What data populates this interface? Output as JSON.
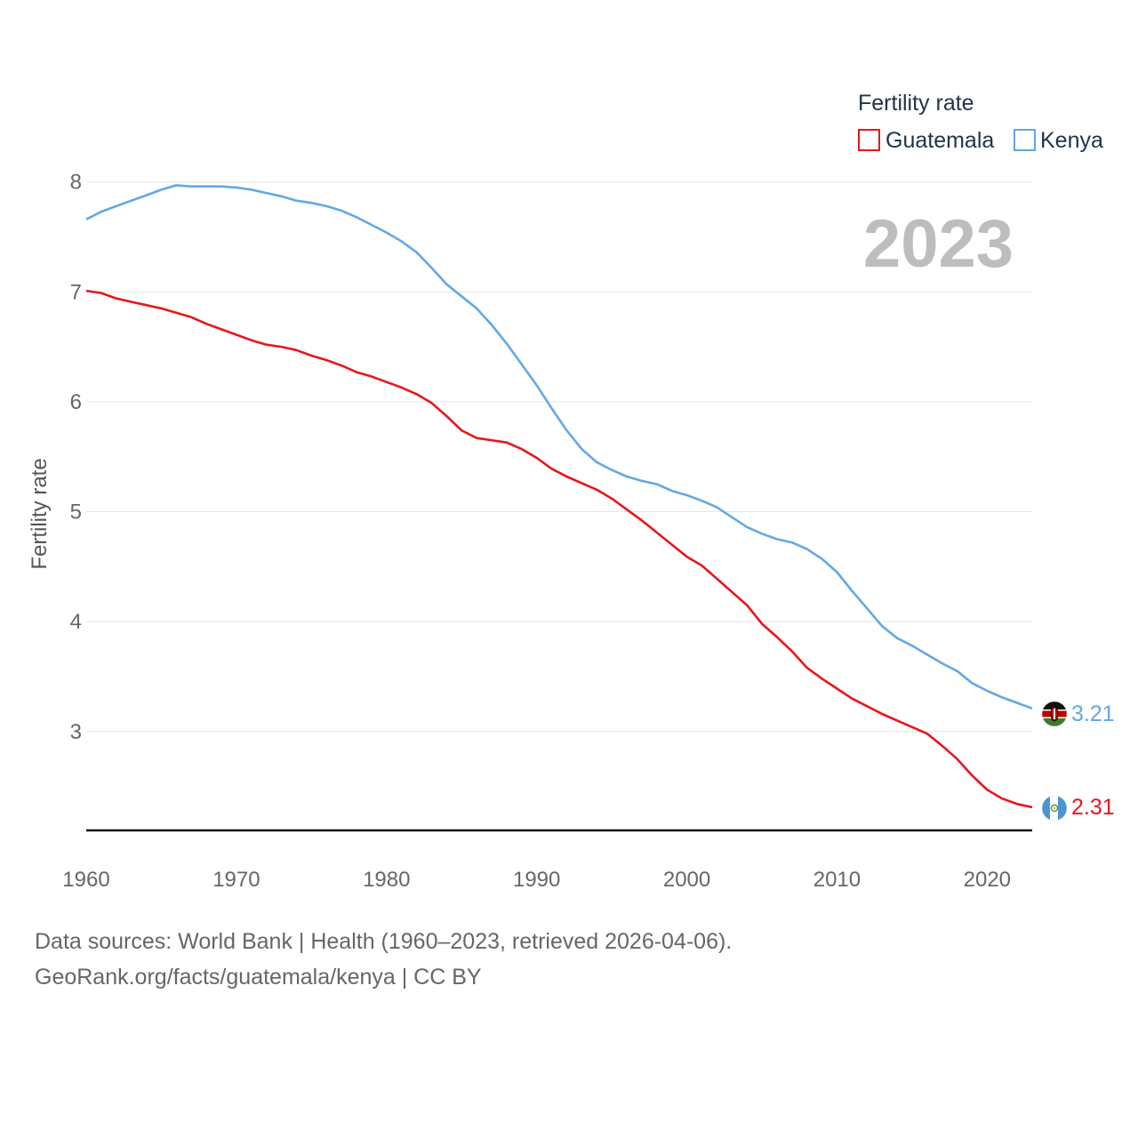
{
  "chart_data": {
    "type": "line",
    "ylabel": "Fertility rate",
    "xlabel": "",
    "legend_title": "Fertility rate",
    "legend_position": "top-right",
    "current_year_label": "2023",
    "xlim": [
      1960,
      2023
    ],
    "ylim": [
      2.1,
      8.2
    ],
    "x_ticks": [
      1960,
      1970,
      1980,
      1990,
      2000,
      2010,
      2020
    ],
    "y_ticks": [
      3,
      4,
      5,
      6,
      7,
      8
    ],
    "grid": true,
    "x": [
      1960,
      1961,
      1962,
      1963,
      1964,
      1965,
      1966,
      1967,
      1968,
      1969,
      1970,
      1971,
      1972,
      1973,
      1974,
      1975,
      1976,
      1977,
      1978,
      1979,
      1980,
      1981,
      1982,
      1983,
      1984,
      1985,
      1986,
      1987,
      1988,
      1989,
      1990,
      1991,
      1992,
      1993,
      1994,
      1995,
      1996,
      1997,
      1998,
      1999,
      2000,
      2001,
      2002,
      2003,
      2004,
      2005,
      2006,
      2007,
      2008,
      2009,
      2010,
      2011,
      2012,
      2013,
      2014,
      2015,
      2016,
      2017,
      2018,
      2019,
      2020,
      2021,
      2022,
      2023
    ],
    "series": [
      {
        "name": "Guatemala",
        "color": "#e8161b",
        "end_value_label": "2.31",
        "flag_icon": "guatemala-flag-icon",
        "values": [
          7.01,
          6.99,
          6.94,
          6.91,
          6.88,
          6.85,
          6.81,
          6.77,
          6.71,
          6.66,
          6.61,
          6.56,
          6.52,
          6.5,
          6.47,
          6.42,
          6.38,
          6.33,
          6.27,
          6.23,
          6.18,
          6.13,
          6.07,
          5.99,
          5.87,
          5.74,
          5.67,
          5.65,
          5.63,
          5.57,
          5.49,
          5.39,
          5.32,
          5.26,
          5.2,
          5.12,
          5.02,
          4.92,
          4.81,
          4.7,
          4.59,
          4.51,
          4.39,
          4.27,
          4.15,
          3.98,
          3.86,
          3.73,
          3.58,
          3.48,
          3.39,
          3.3,
          3.23,
          3.16,
          3.1,
          3.04,
          2.98,
          2.87,
          2.75,
          2.6,
          2.47,
          2.39,
          2.34,
          2.31
        ]
      },
      {
        "name": "Kenya",
        "color": "#62a8e6",
        "end_value_label": "3.21",
        "flag_icon": "kenya-flag-icon",
        "values": [
          7.66,
          7.73,
          7.78,
          7.83,
          7.88,
          7.93,
          7.97,
          7.96,
          7.96,
          7.96,
          7.95,
          7.93,
          7.9,
          7.87,
          7.83,
          7.81,
          7.78,
          7.74,
          7.68,
          7.61,
          7.54,
          7.46,
          7.36,
          7.22,
          7.07,
          6.96,
          6.85,
          6.7,
          6.53,
          6.34,
          6.15,
          5.94,
          5.74,
          5.57,
          5.45,
          5.38,
          5.32,
          5.28,
          5.25,
          5.19,
          5.15,
          5.1,
          5.04,
          4.95,
          4.86,
          4.8,
          4.75,
          4.72,
          4.66,
          4.57,
          4.45,
          4.28,
          4.12,
          3.96,
          3.85,
          3.78,
          3.7,
          3.62,
          3.55,
          3.44,
          3.37,
          3.31,
          3.26,
          3.21
        ]
      }
    ]
  },
  "footer": {
    "line1": "Data sources: World Bank | Health (1960–2023, retrieved 2026-04-06).",
    "line2": "GeoRank.org/facts/guatemala/kenya | CC BY"
  }
}
